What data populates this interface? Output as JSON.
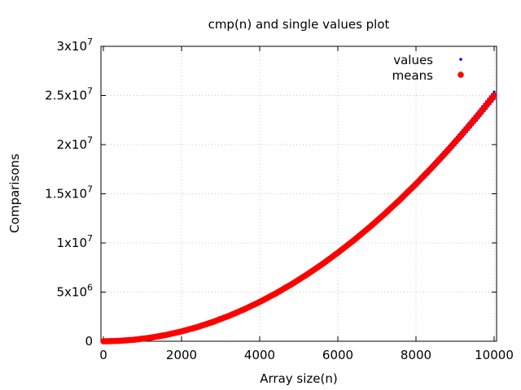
{
  "chart_data": {
    "type": "scatter",
    "title": "cmp(n) and single values plot",
    "xlabel": "Array size(n)",
    "ylabel": "Comparisons",
    "xlim": [
      0,
      10000
    ],
    "ylim": [
      0,
      30000000
    ],
    "grid": true,
    "legend_position": "top-right",
    "x_ticks": [
      {
        "value": 0,
        "label": "0"
      },
      {
        "value": 2000,
        "label": "2000"
      },
      {
        "value": 4000,
        "label": "4000"
      },
      {
        "value": 6000,
        "label": "6000"
      },
      {
        "value": 8000,
        "label": "8000"
      },
      {
        "value": 10000,
        "label": "10000"
      }
    ],
    "y_ticks": [
      {
        "value": 0,
        "mantissa": "0",
        "exponent": ""
      },
      {
        "value": 5000000,
        "mantissa": "5x10",
        "exponent": "6"
      },
      {
        "value": 10000000,
        "mantissa": "1x10",
        "exponent": "7"
      },
      {
        "value": 15000000,
        "mantissa": "1.5x10",
        "exponent": "7"
      },
      {
        "value": 20000000,
        "mantissa": "2x10",
        "exponent": "7"
      },
      {
        "value": 25000000,
        "mantissa": "2.5x10",
        "exponent": "7"
      },
      {
        "value": 30000000,
        "mantissa": "3x10",
        "exponent": "7"
      }
    ],
    "series": [
      {
        "name": "values",
        "color": "#0000ff",
        "marker": "small-dot",
        "x": [
          100,
          400,
          800,
          1200,
          1600,
          2000,
          2400,
          2800,
          3200,
          3600,
          4000,
          4400,
          4800,
          5200,
          5600,
          6000,
          6400,
          6800,
          7200,
          7600,
          8000,
          8400,
          8800,
          9200,
          9600,
          10000
        ],
        "y": [
          2500,
          40000,
          160000,
          360000,
          640000,
          1000000,
          1440000,
          1960000,
          2560000,
          3240000,
          4000000,
          4840000,
          5760000,
          6760000,
          7840000,
          9000000,
          10240000,
          11560000,
          12960000,
          14440000,
          16000000,
          17640000,
          19360000,
          21160000,
          23040000,
          25000000
        ]
      },
      {
        "name": "means",
        "color": "#ff0000",
        "marker": "large-dot",
        "x": [
          100,
          400,
          800,
          1200,
          1600,
          2000,
          2400,
          2800,
          3200,
          3600,
          4000,
          4400,
          4800,
          5200,
          5600,
          6000,
          6400,
          6800,
          7200,
          7600,
          8000,
          8400,
          8800,
          9200,
          9600,
          10000
        ],
        "y": [
          2500,
          40000,
          160000,
          360000,
          640000,
          1000000,
          1440000,
          1960000,
          2560000,
          3240000,
          4000000,
          4840000,
          5760000,
          6760000,
          7840000,
          9000000,
          10240000,
          11560000,
          12960000,
          14440000,
          16000000,
          17640000,
          19360000,
          21160000,
          23040000,
          25000000
        ]
      }
    ]
  }
}
